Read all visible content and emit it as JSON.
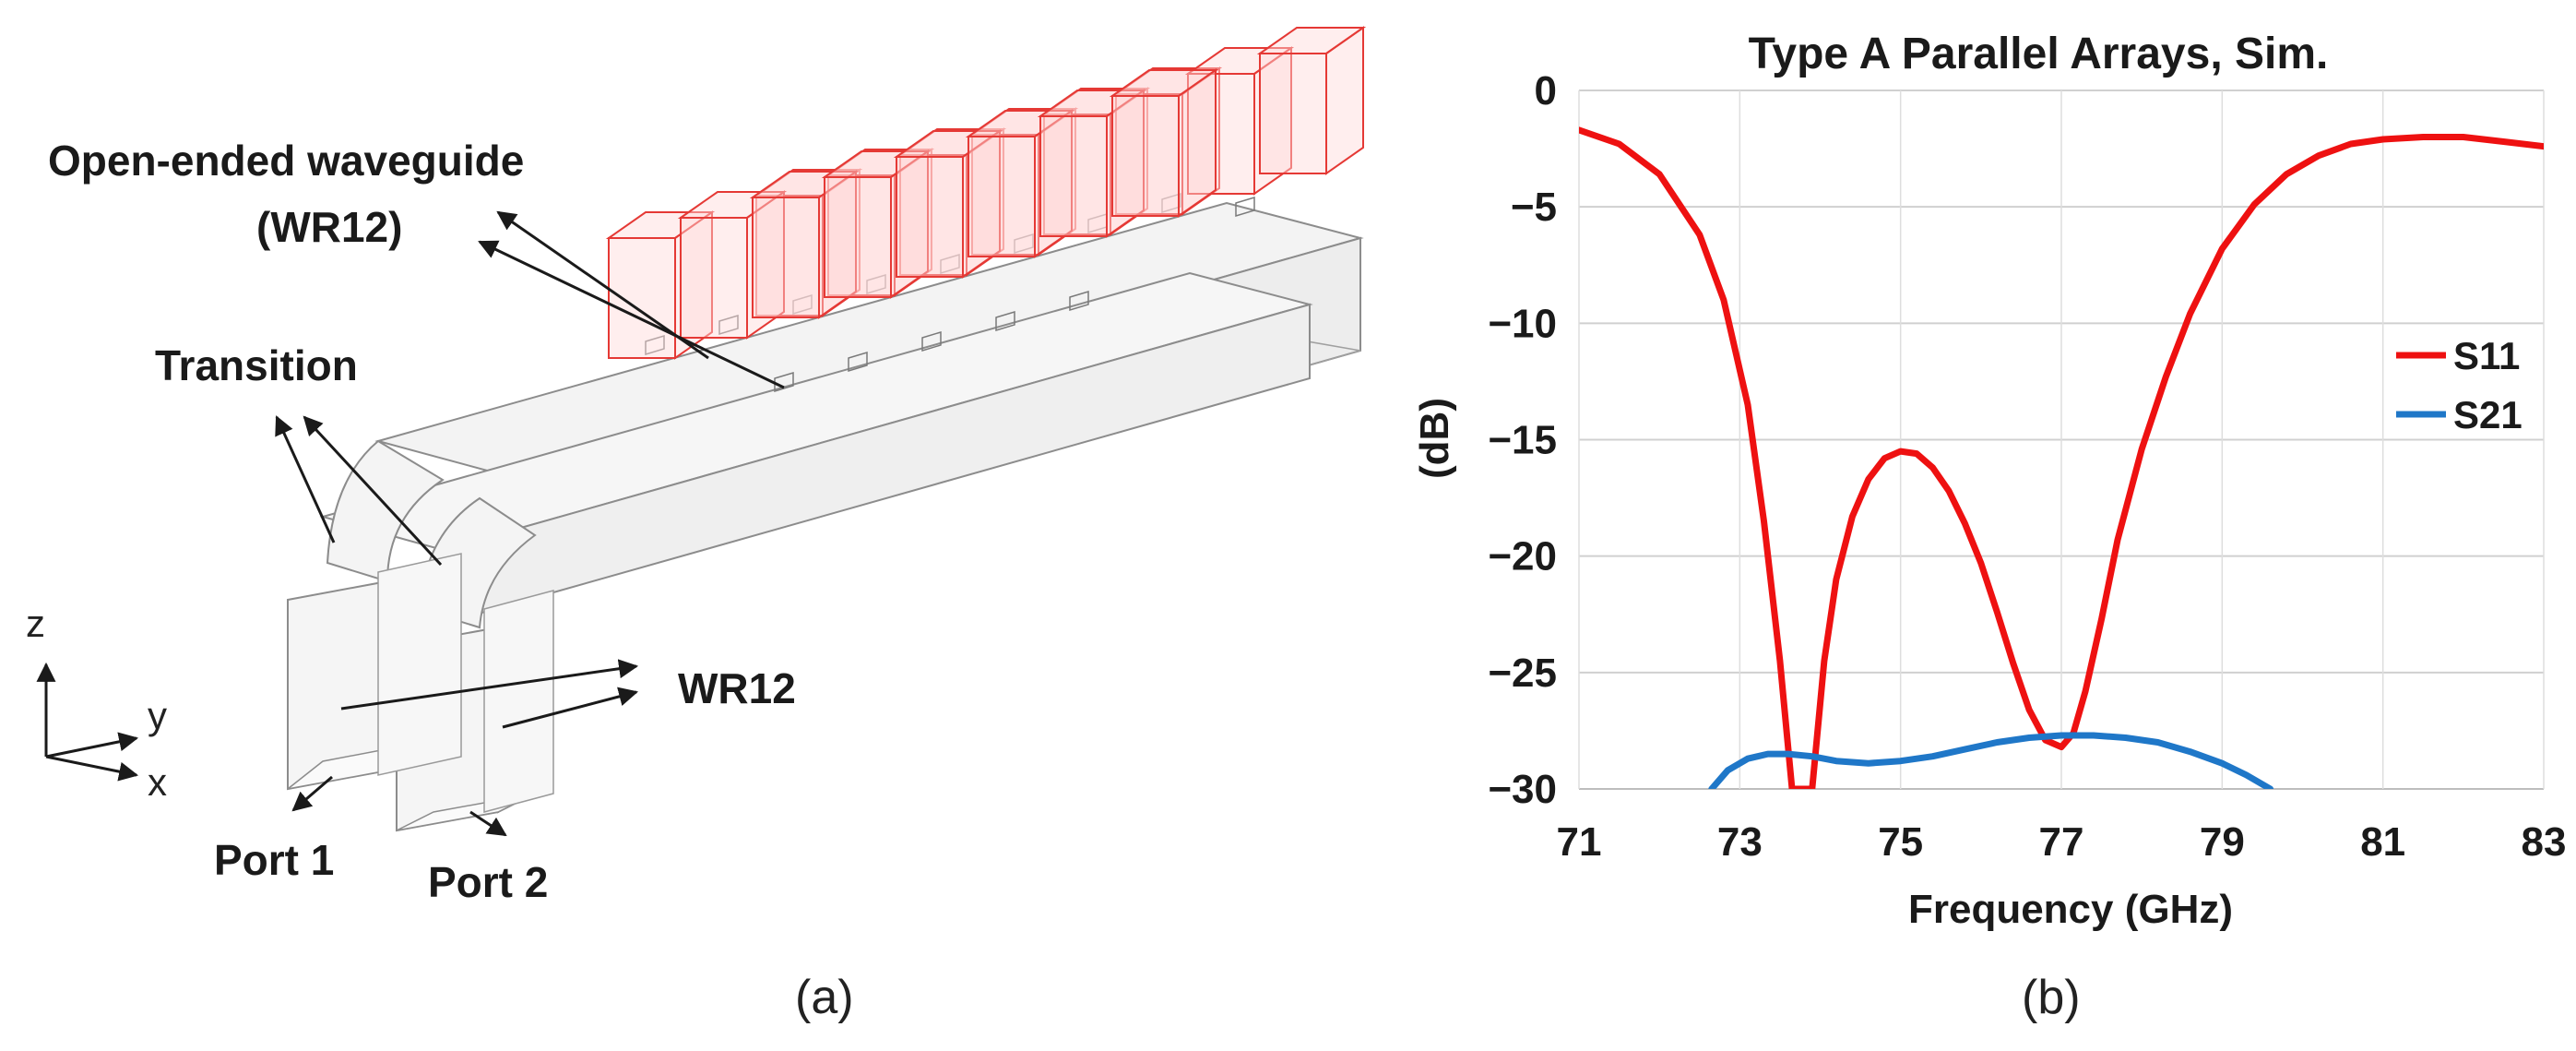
{
  "panel_a": {
    "caption": "(a)",
    "labels": {
      "open_ended_line1": "Open-ended waveguide",
      "open_ended_line2": "(WR12)",
      "transition": "Transition",
      "wr12": "WR12",
      "port1": "Port 1",
      "port2": "Port 2",
      "axis_z": "z",
      "axis_y": "y",
      "axis_x": "x"
    },
    "colors": {
      "radiating_box": "#e53935",
      "waveguide_outline": "#8c8c8c",
      "fill": "#f4f4f4"
    }
  },
  "panel_b": {
    "caption": "(b)"
  },
  "chart_data": {
    "type": "line",
    "title": "Type A Parallel Arrays, Sim.",
    "xlabel": "Frequency (GHz)",
    "ylabel": "(dB)",
    "xlim": [
      71,
      83
    ],
    "ylim": [
      -30,
      0
    ],
    "xticks": [
      "71",
      "73",
      "75",
      "77",
      "79",
      "81",
      "83"
    ],
    "yticks": [
      "0",
      "−5",
      "−10",
      "−15",
      "−20",
      "−25",
      "−30"
    ],
    "grid": "horizontal",
    "legend": "right",
    "series": [
      {
        "name": "S11",
        "color": "#ee1111",
        "x": [
          71,
          71.5,
          72,
          72.5,
          72.8,
          73.1,
          73.3,
          73.5,
          73.65,
          73.9,
          74.05,
          74.2,
          74.4,
          74.6,
          74.8,
          75.0,
          75.2,
          75.4,
          75.6,
          75.8,
          76.0,
          76.2,
          76.4,
          76.6,
          76.8,
          77.0,
          77.15,
          77.3,
          77.5,
          77.7,
          78.0,
          78.3,
          78.6,
          79.0,
          79.4,
          79.8,
          80.2,
          80.6,
          81.0,
          81.5,
          82.0,
          82.5,
          83.0
        ],
        "y": [
          -1.7,
          -2.3,
          -3.6,
          -6.2,
          -9.0,
          -13.5,
          -18.5,
          -24.5,
          -30,
          -30,
          -24.5,
          -21.0,
          -18.3,
          -16.7,
          -15.8,
          -15.5,
          -15.6,
          -16.2,
          -17.2,
          -18.6,
          -20.3,
          -22.4,
          -24.6,
          -26.6,
          -27.9,
          -28.2,
          -27.6,
          -25.8,
          -22.7,
          -19.3,
          -15.4,
          -12.3,
          -9.6,
          -6.8,
          -4.9,
          -3.6,
          -2.8,
          -2.3,
          -2.1,
          -2.0,
          -2.0,
          -2.2,
          -2.4
        ]
      },
      {
        "name": "S21",
        "color": "#1f77c8",
        "x": [
          72.65,
          72.85,
          73.1,
          73.35,
          73.6,
          73.9,
          74.2,
          74.6,
          75.0,
          75.4,
          75.8,
          76.2,
          76.6,
          77.0,
          77.4,
          77.8,
          78.2,
          78.6,
          79.0,
          79.3,
          79.6
        ],
        "y": [
          -30,
          -29.2,
          -28.7,
          -28.5,
          -28.5,
          -28.6,
          -28.8,
          -28.9,
          -28.8,
          -28.6,
          -28.3,
          -28.0,
          -27.8,
          -27.7,
          -27.7,
          -27.8,
          -28.0,
          -28.4,
          -28.9,
          -29.4,
          -30
        ]
      }
    ]
  }
}
